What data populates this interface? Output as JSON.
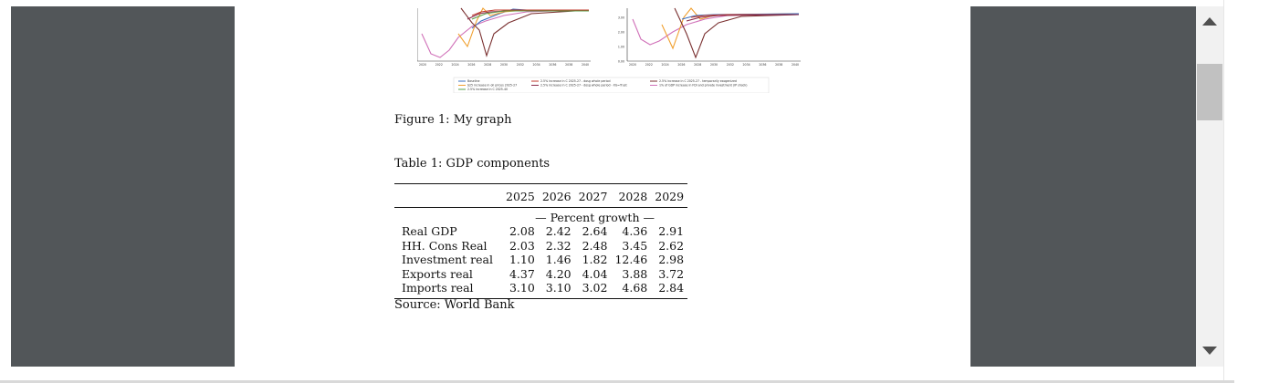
{
  "figure": {
    "caption": "Figure 1: My graph",
    "left_panel": {
      "y_ticks": [
        "3.50",
        "3.00",
        "2.50",
        "2.00",
        "1.50",
        "1.00",
        "0.50"
      ],
      "x_ticks": [
        "2020",
        "2022",
        "2024",
        "2026",
        "2028",
        "2030",
        "2032",
        "2034",
        "2036",
        "2038",
        "2040"
      ]
    },
    "right_panel": {
      "y_ticks": [
        "3.00",
        "2.00",
        "1.00",
        "0.00"
      ],
      "x_ticks": [
        "2020",
        "2022",
        "2024",
        "2026",
        "2028",
        "2030",
        "2032",
        "2034",
        "2036",
        "2038",
        "2040"
      ]
    },
    "legend": [
      {
        "label": "Baseline",
        "color": "#3a6fbf"
      },
      {
        "label": "$25 increase in oil prices 2025-27",
        "color": "#f0a030"
      },
      {
        "label": "2.5% increase in C 2025-40",
        "color": "#5aa04a"
      },
      {
        "label": "2.5% increase in C 2025-27 - dosg whole period",
        "color": "#c0392b"
      },
      {
        "label": "2.5% increase in C 2025-27 - dosg whole period - XG=Trust",
        "color": "#8a2b4a"
      },
      {
        "label": "2.5% increase in C 2025-27 - temporarily exogenized",
        "color": "#7a3030"
      },
      {
        "label": "1% of GDP increase in FDI and private investment (IP shock)",
        "color": "#d070b8"
      }
    ]
  },
  "table": {
    "caption": "Table 1: GDP components",
    "columns": [
      "2025",
      "2026",
      "2027",
      "2028",
      "2029"
    ],
    "group_label": "— Percent growth —",
    "rows": [
      {
        "label": "Real GDP",
        "values": [
          "2.08",
          "2.42",
          "2.64",
          "4.36",
          "2.91"
        ]
      },
      {
        "label": "HH. Cons Real",
        "values": [
          "2.03",
          "2.32",
          "2.48",
          "3.45",
          "2.62"
        ]
      },
      {
        "label": "Investment real",
        "values": [
          "1.10",
          "1.46",
          "1.82",
          "12.46",
          "2.98"
        ]
      },
      {
        "label": "Exports real",
        "values": [
          "4.37",
          "4.20",
          "4.04",
          "3.88",
          "3.72"
        ]
      },
      {
        "label": "Imports real",
        "values": [
          "3.10",
          "3.10",
          "3.02",
          "4.68",
          "2.84"
        ]
      }
    ],
    "source": "Source: World Bank"
  }
}
